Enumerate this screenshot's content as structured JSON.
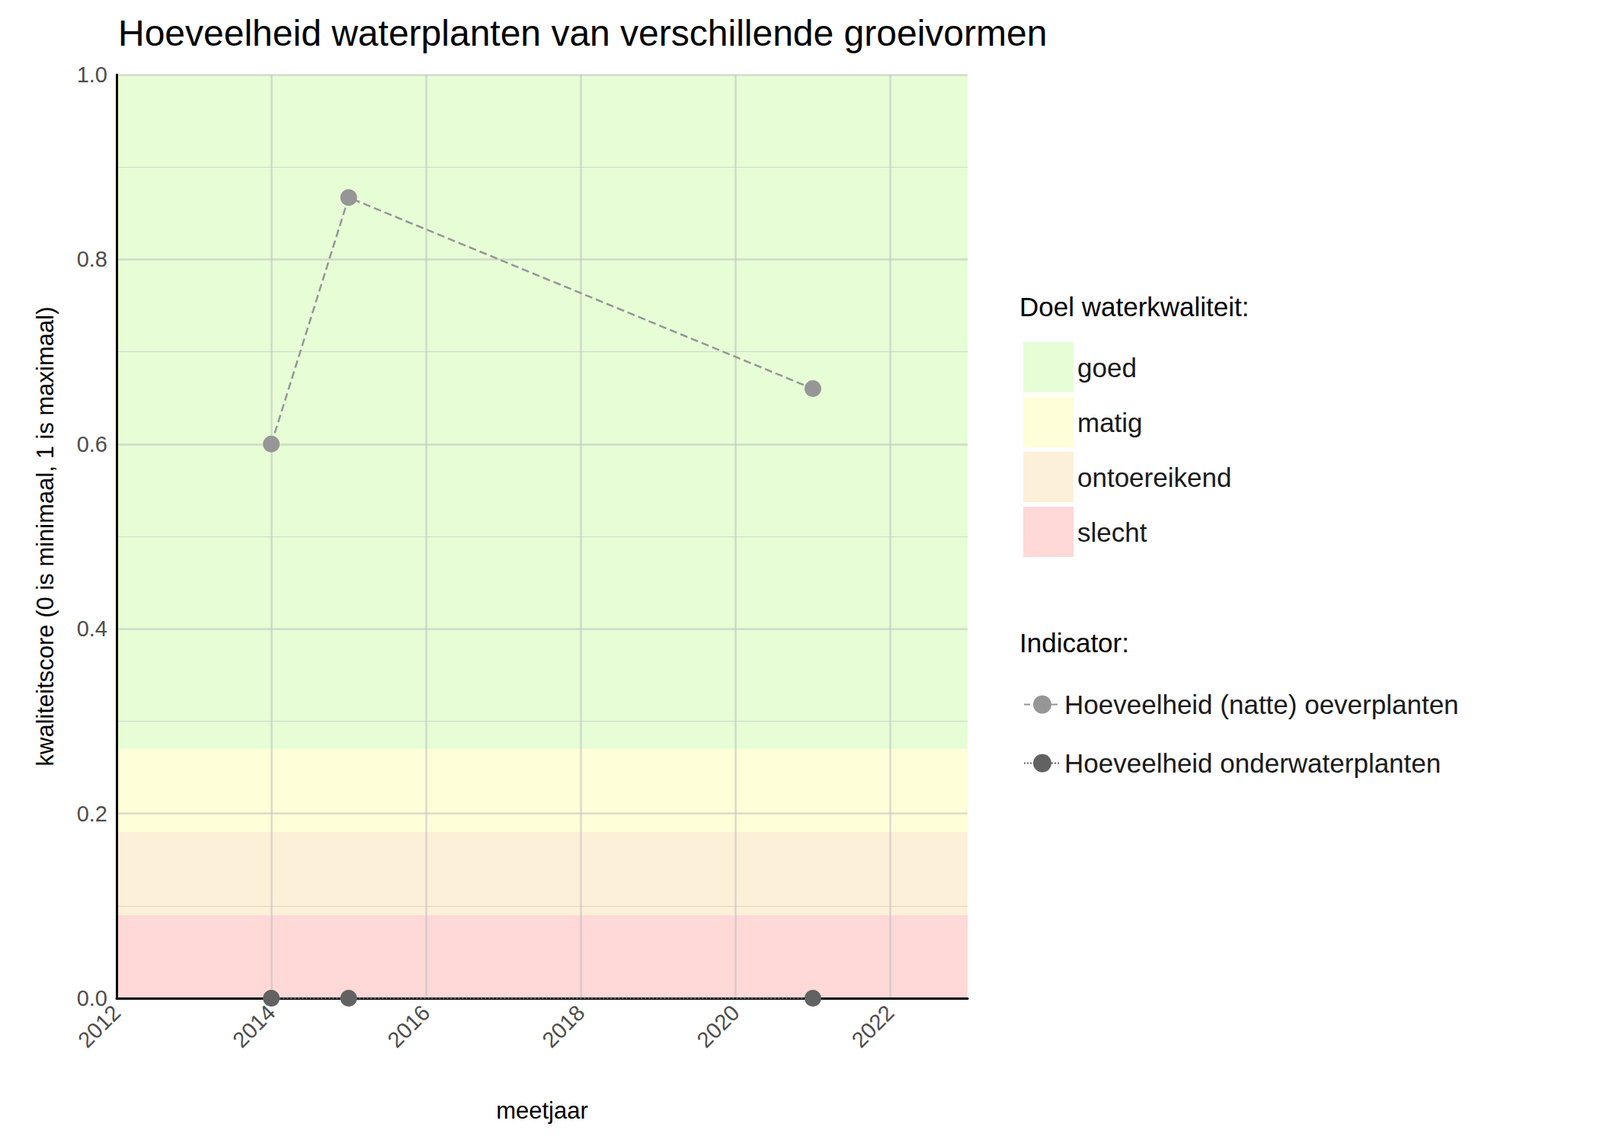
{
  "chart_data": {
    "type": "line",
    "title": "Hoeveelheid waterplanten van verschillende groeivormen",
    "x_label": "meetjaar",
    "y_label": "kwaliteitscore (0 is minimaal, 1 is maximaal)",
    "x": [
      2014,
      2015,
      2021
    ],
    "series": [
      {
        "name": "Hoeveelheid (natte) oeverplanten",
        "color": "#969696",
        "values": [
          0.6,
          0.867,
          0.66
        ],
        "marker": "circle",
        "line_style": "dashed"
      },
      {
        "name": "Hoeveelheid onderwaterplanten",
        "color": "#626262",
        "values": [
          0,
          0,
          0
        ],
        "marker": "circle",
        "line_style": "dotted"
      }
    ],
    "xlim": [
      2012,
      2023
    ],
    "xticks": [
      2012,
      2014,
      2016,
      2018,
      2020,
      2022
    ],
    "ylim": [
      0,
      1
    ],
    "yticks": [
      {
        "value": 0,
        "label": "0.0"
      },
      {
        "value": 0.2,
        "label": "0.2"
      },
      {
        "value": 0.4,
        "label": "0.4"
      },
      {
        "value": 0.6,
        "label": "0.6"
      },
      {
        "value": 0.8,
        "label": "0.8"
      },
      {
        "value": 1,
        "label": "1.0"
      }
    ],
    "grid": true,
    "legend": "right",
    "bands_title": "Doel waterkwaliteit:",
    "bands": [
      {
        "name": "goed",
        "color": "#e6fdd6",
        "from": 0.27,
        "to": 1
      },
      {
        "name": "matig",
        "color": "#fefed8",
        "from": 0.18,
        "to": 0.27
      },
      {
        "name": "ontoereikend",
        "color": "#fdf0d8",
        "from": 0.09,
        "to": 0.18
      },
      {
        "name": "slecht",
        "color": "#ffd8d8",
        "from": 0,
        "to": 0.09
      }
    ],
    "series_title": "Indicator:"
  }
}
